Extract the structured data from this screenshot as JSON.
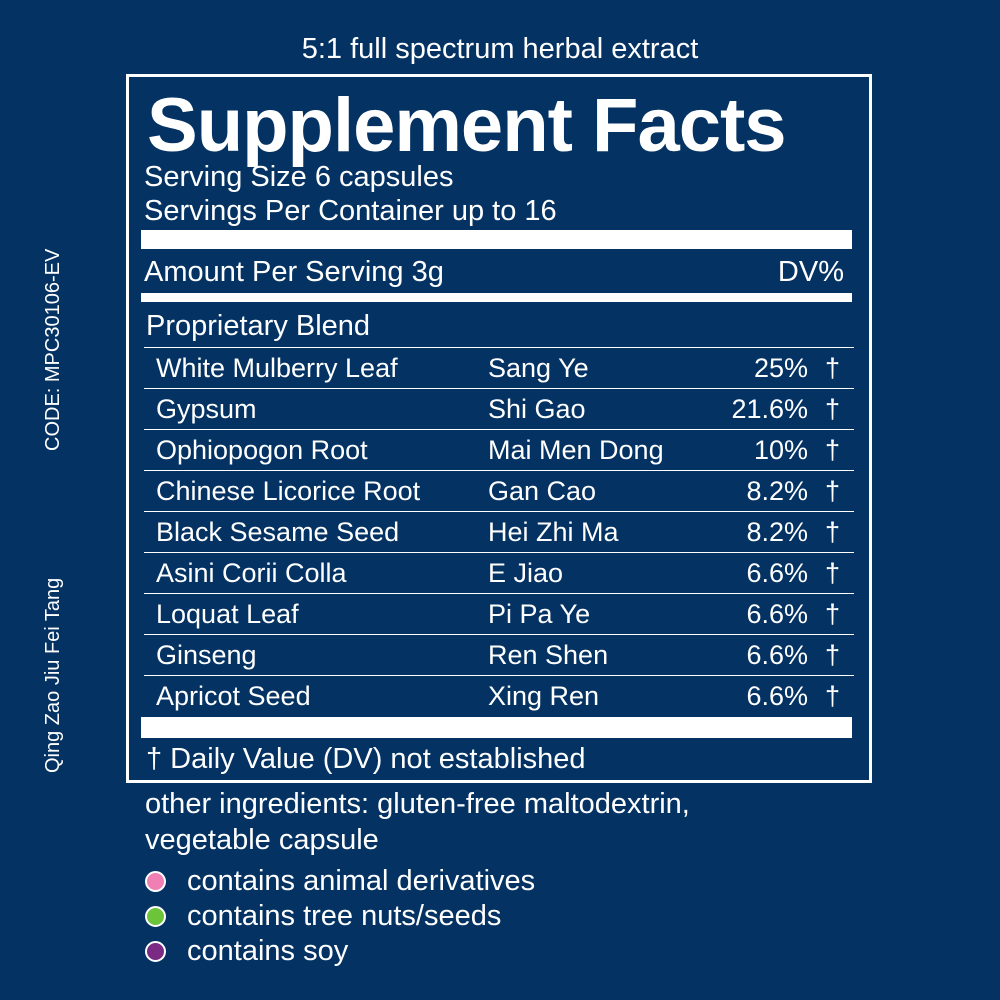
{
  "header": {
    "subtitle": "5:1 full spectrum herbal extract"
  },
  "side": {
    "code": "CODE: MPC30106-EV",
    "formula_name": "Qing Zao Jiu Fei Tang"
  },
  "facts": {
    "title": "Supplement Facts",
    "serving_size": "Serving Size 6 capsules",
    "servings_per_container": "Servings Per Container up to 16",
    "amount_label": "Amount Per Serving 3g",
    "dv_label": "DV%",
    "blend_label": "Proprietary Blend",
    "ingredients": [
      {
        "name": "White Mulberry Leaf",
        "pinyin": "Sang Ye",
        "percent": "25%",
        "mark": "†"
      },
      {
        "name": "Gypsum",
        "pinyin": "Shi Gao",
        "percent": "21.6%",
        "mark": "†"
      },
      {
        "name": "Ophiopogon Root",
        "pinyin": "Mai Men Dong",
        "percent": "10%",
        "mark": "†"
      },
      {
        "name": "Chinese Licorice Root",
        "pinyin": "Gan Cao",
        "percent": "8.2%",
        "mark": "†"
      },
      {
        "name": "Black Sesame Seed",
        "pinyin": "Hei Zhi Ma",
        "percent": "8.2%",
        "mark": "†"
      },
      {
        "name": "Asini Corii Colla",
        "pinyin": "E Jiao",
        "percent": "6.6%",
        "mark": "†"
      },
      {
        "name": "Loquat Leaf",
        "pinyin": "Pi Pa Ye",
        "percent": "6.6%",
        "mark": "†"
      },
      {
        "name": "Ginseng",
        "pinyin": "Ren Shen",
        "percent": "6.6%",
        "mark": "†"
      },
      {
        "name": "Apricot Seed",
        "pinyin": "Xing Ren",
        "percent": "6.6%",
        "mark": "†"
      }
    ],
    "footnote": "† Daily Value (DV) not established"
  },
  "other_ingredients": {
    "line1": "other ingredients: gluten-free maltodextrin,",
    "line2": "vegetable capsule"
  },
  "legend": [
    {
      "label": "contains animal derivatives",
      "color": "#f07fb3"
    },
    {
      "label": "contains tree nuts/seeds",
      "color": "#6cc43a"
    },
    {
      "label": "contains soy",
      "color": "#7a2a82"
    }
  ],
  "colors": {
    "background": "#033263",
    "foreground": "#ffffff"
  }
}
